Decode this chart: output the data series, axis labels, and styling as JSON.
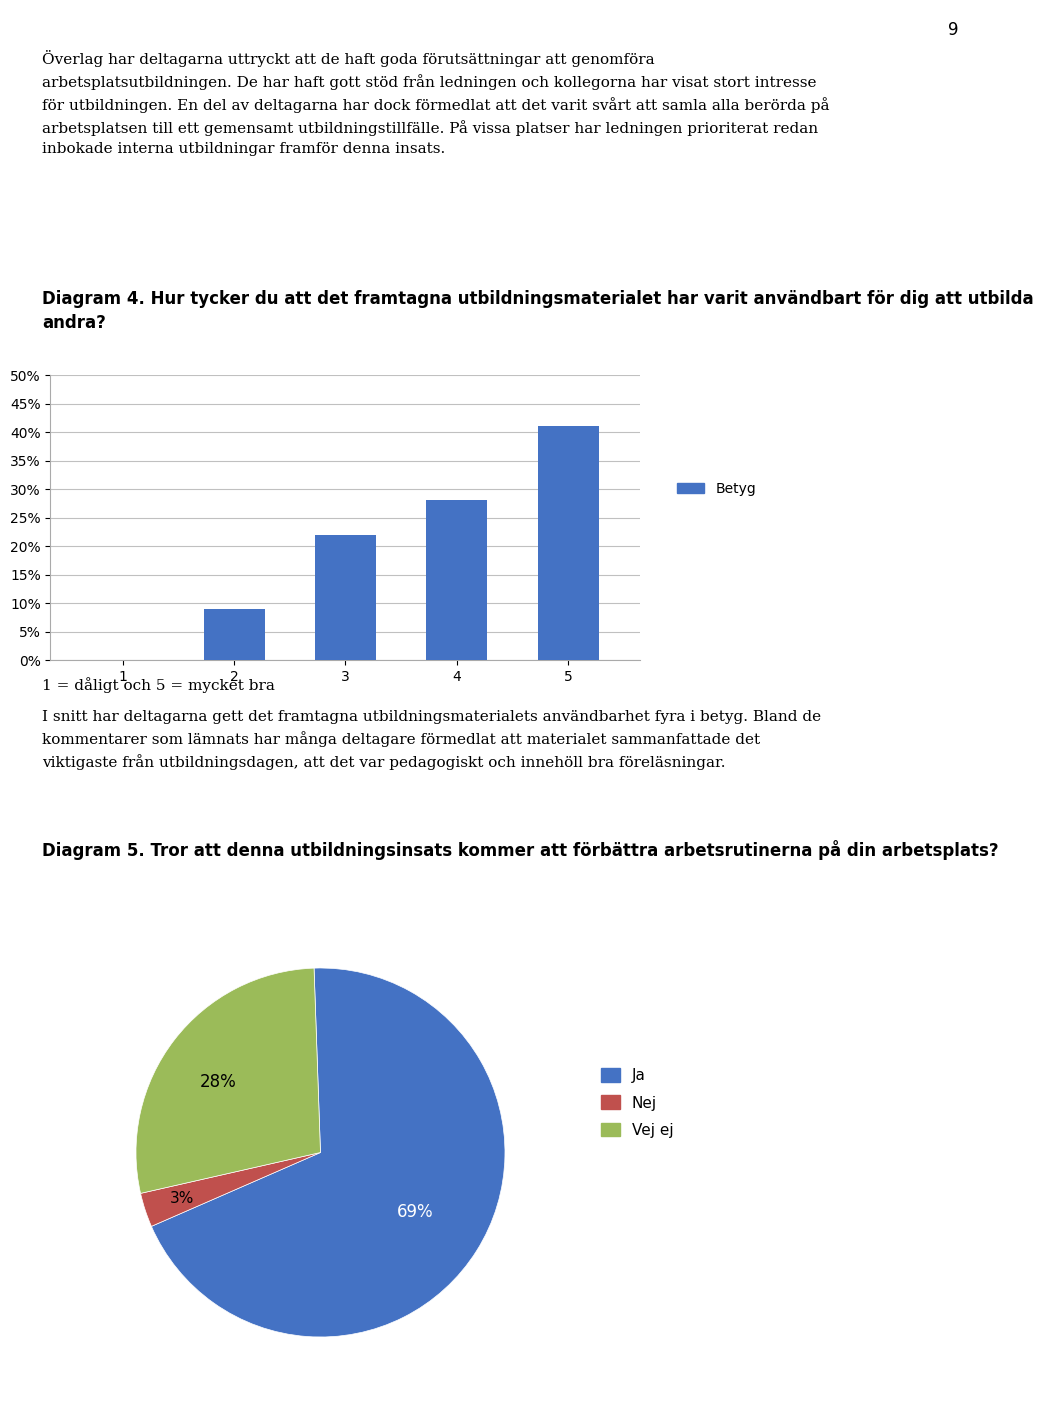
{
  "page_number": "9",
  "para1_line1": "Överlag har deltagarna uttryckt att de haft goda förutsättningar att genomföra",
  "para1_line2": "arbetsplatsutbildningen. De har haft gott stöd från ledningen och kollegorna har visat stort intresse",
  "para1_line3": "för utbildningen. En del av deltagarna har dock förmedlat att det varit svårt att samla alla berörda på",
  "para1_line4": "arbetsplatsen till ett gemensamt utbildningstillfälle. På vissa platser har ledningen prioriterat redan",
  "para1_line5": "inbokade interna utbildningar framför denna insats.",
  "diag4_title_line1": "Diagram 4. Hur tycker du att det framtagna utbildningsmaterialet har varit användbart för dig att utbilda",
  "diag4_title_line2": "andra?",
  "bar_categories": [
    1,
    2,
    3,
    4,
    5
  ],
  "bar_values": [
    0.0,
    0.09,
    0.22,
    0.28,
    0.41
  ],
  "bar_color": "#4472C4",
  "bar_ylim": [
    0,
    0.5
  ],
  "bar_yticks": [
    0.0,
    0.05,
    0.1,
    0.15,
    0.2,
    0.25,
    0.3,
    0.35,
    0.4,
    0.45,
    0.5
  ],
  "bar_ytick_labels": [
    "0%",
    "5%",
    "10%",
    "15%",
    "20%",
    "25%",
    "30%",
    "35%",
    "40%",
    "45%",
    "50%"
  ],
  "bar_legend_label": "Betyg",
  "note_text": "1 = dåligt och 5 = mycket bra",
  "para2_line1": "I snitt har deltagarna gett det framtagna utbildningsmaterialets användbarhet fyra i betyg. Bland de",
  "para2_line2": "kommentarer som lämnats har många deltagare förmedlat att materialet sammanfattade det",
  "para2_line3": "viktigaste från utbildningsdagen, att det var pedagogiskt och innehöll bra föreläsningar.",
  "diag5_title": "Diagram 5. Tror att denna utbildningsinsats kommer att förbättra arbetsrutinerna på din arbetsplats?",
  "pie_values": [
    69,
    3,
    28
  ],
  "pie_colors": [
    "#4472C4",
    "#C0504D",
    "#9BBB59"
  ],
  "pie_legend_labels": [
    "Ja",
    "Nej",
    "Vej ej"
  ],
  "pie_label_69": "69%",
  "pie_label_3": "3%",
  "pie_label_28": "28%",
  "background_color": "#FFFFFF",
  "chart_bg": "#FFFFFF",
  "grid_color": "#C0C0C0",
  "text_color": "#000000",
  "body_fontsize": 11.0,
  "bold_fontsize": 12.0,
  "page_num_fontsize": 12
}
